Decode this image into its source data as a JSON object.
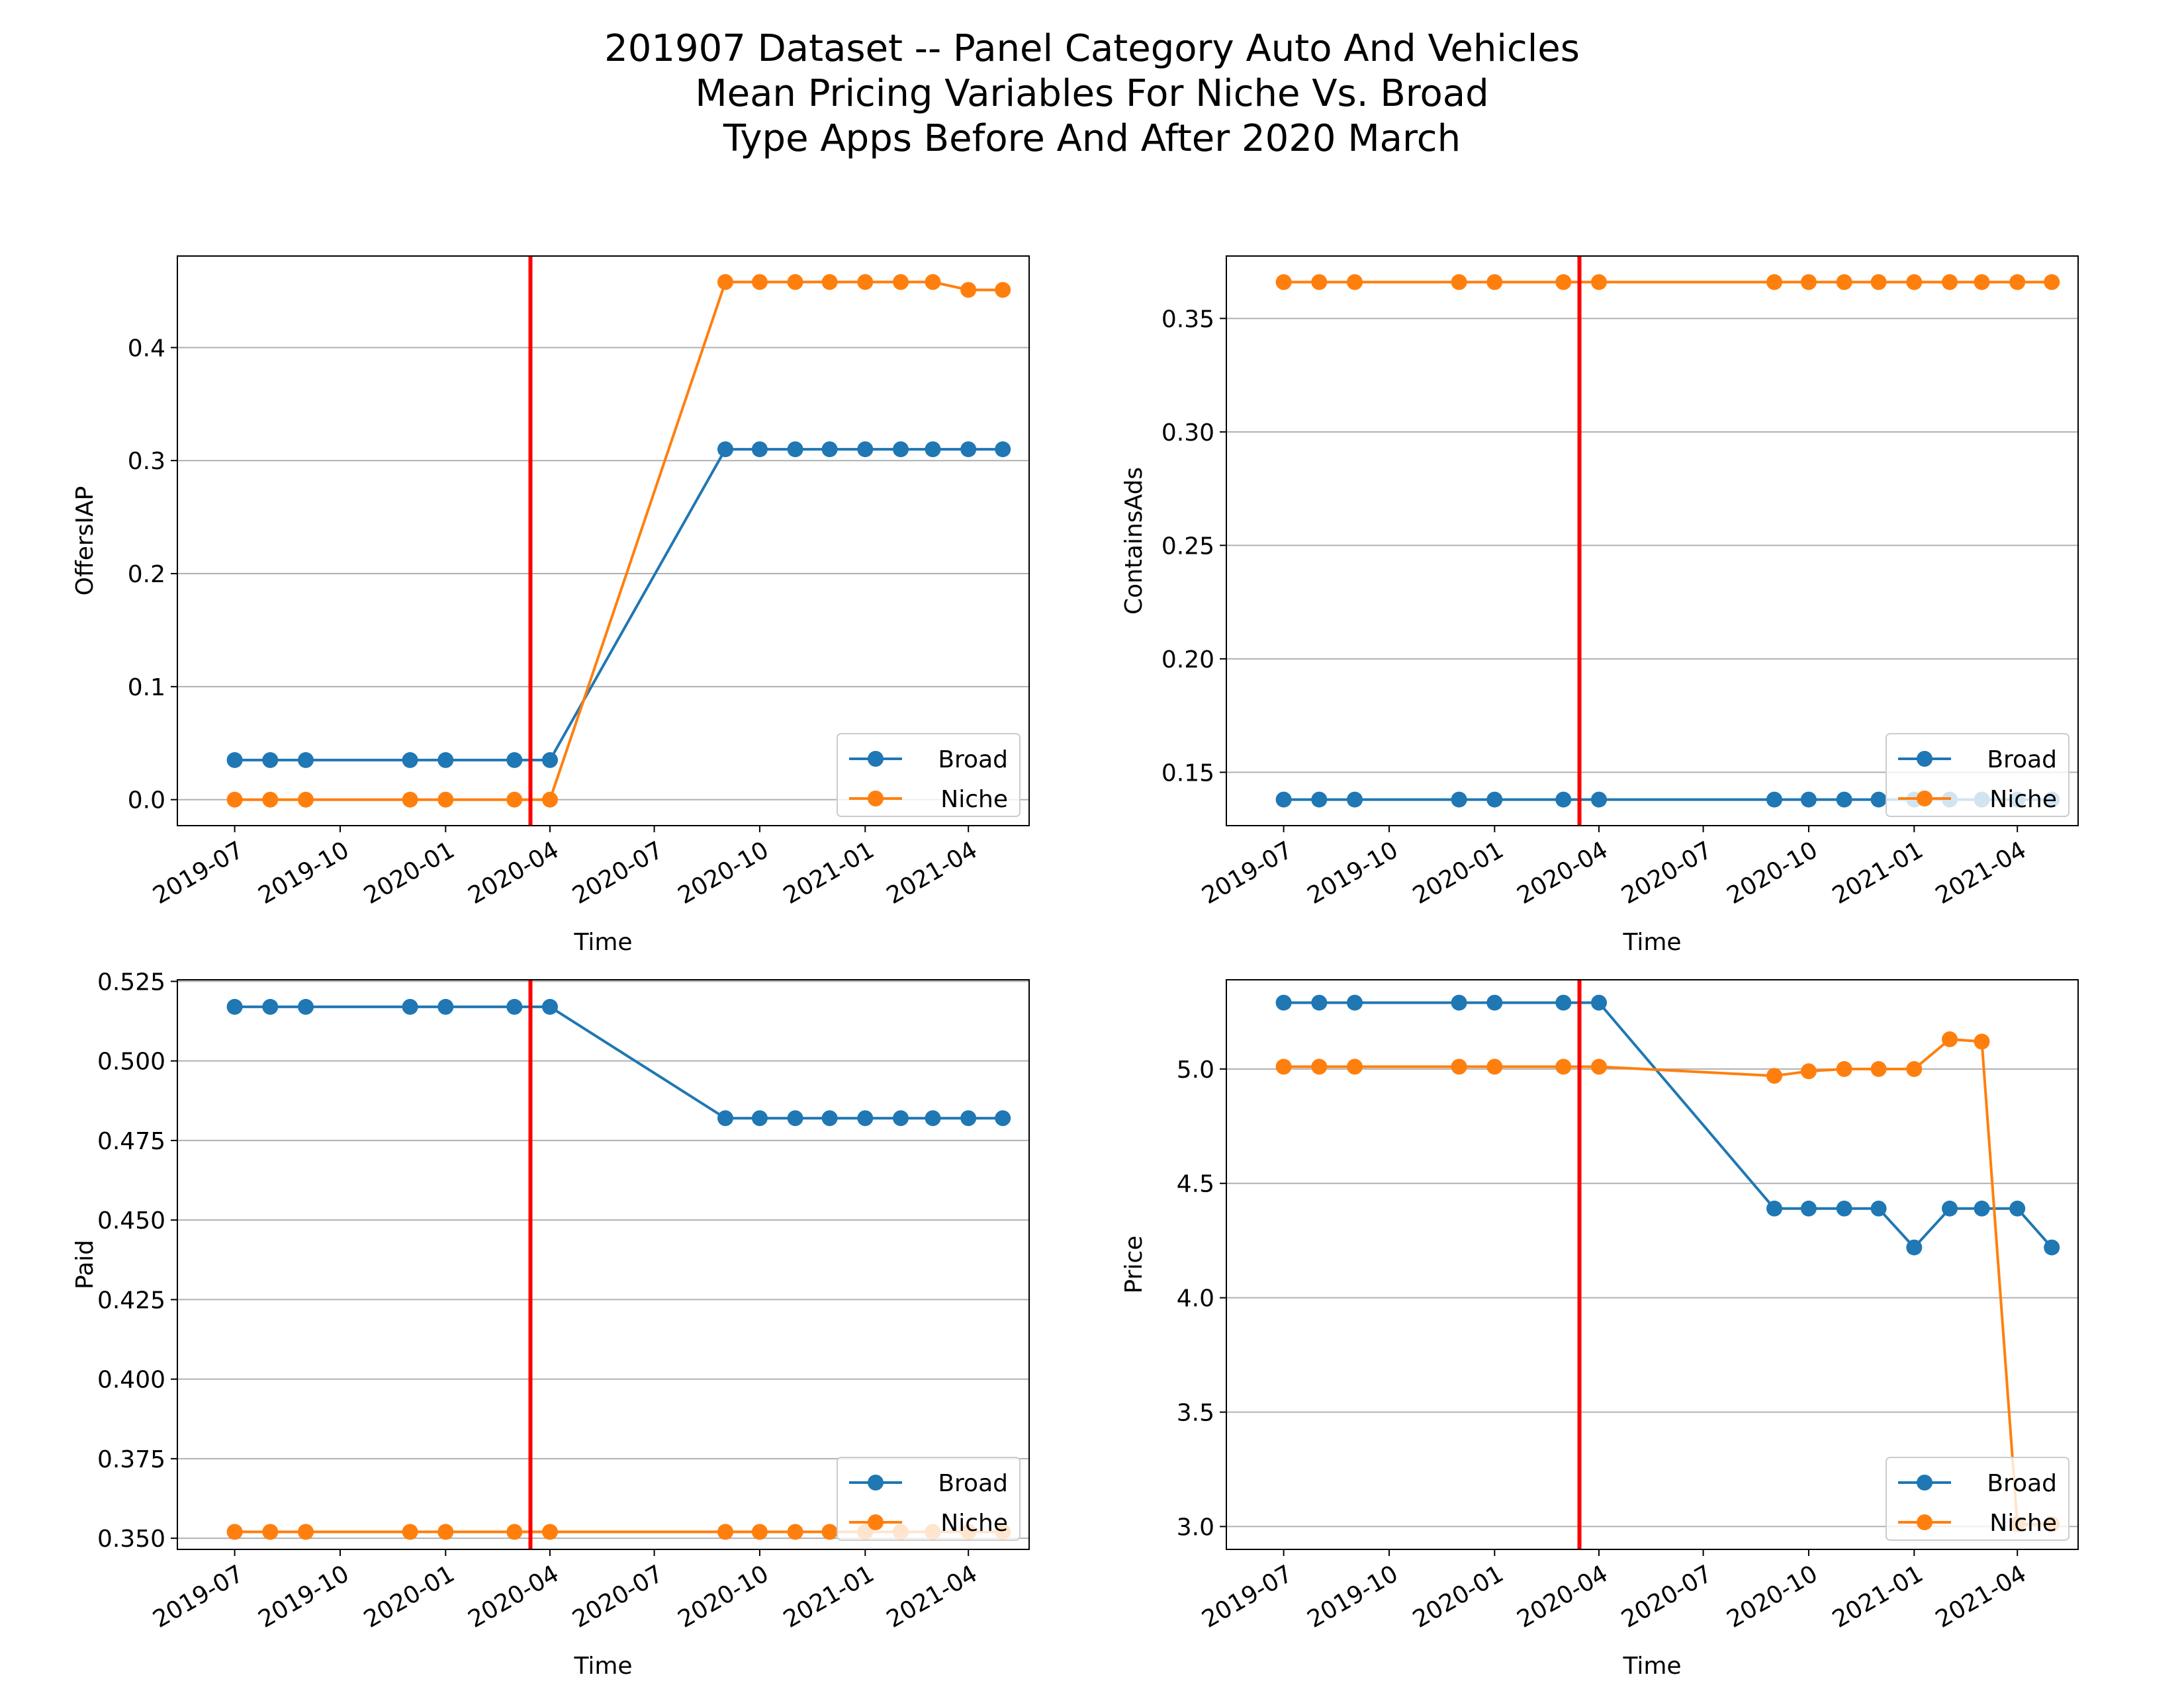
{
  "figure": {
    "title_lines": [
      "201907 Dataset -- Panel Category Auto And Vehicles",
      "Mean Pricing Variables For Niche Vs. Broad",
      "Type Apps Before And After 2020 March"
    ]
  },
  "colors": {
    "broad": "#1f77b4",
    "niche": "#ff7f0e",
    "event_line": "#ff0000",
    "grid": "#b0b0b0",
    "axis": "#000000"
  },
  "chart_data": [
    {
      "type": "line",
      "xlabel": "Time",
      "ylabel": "OffersIAP",
      "x_range": [
        "2019-05-12",
        "2021-05-24"
      ],
      "x_ticks": [
        "2019-07",
        "2019-10",
        "2020-01",
        "2020-04",
        "2020-07",
        "2020-10",
        "2021-01",
        "2021-04"
      ],
      "ylim": [
        -0.023,
        0.481
      ],
      "y_ticks": [
        "0.0",
        "0.1",
        "0.2",
        "0.3",
        "0.4"
      ],
      "grid": "horizontal",
      "legend_position": "lower-right",
      "event_date": "2020-03-15",
      "series": [
        {
          "name": "Broad",
          "color": "broad",
          "points": [
            [
              "2019-07-01",
              0.035
            ],
            [
              "2019-08-01",
              0.035
            ],
            [
              "2019-09-01",
              0.035
            ],
            [
              "2019-12-01",
              0.035
            ],
            [
              "2020-01-01",
              0.035
            ],
            [
              "2020-03-01",
              0.035
            ],
            [
              "2020-04-01",
              0.035
            ],
            [
              "2020-09-01",
              0.31
            ],
            [
              "2020-10-01",
              0.31
            ],
            [
              "2020-11-01",
              0.31
            ],
            [
              "2020-12-01",
              0.31
            ],
            [
              "2021-01-01",
              0.31
            ],
            [
              "2021-02-01",
              0.31
            ],
            [
              "2021-03-01",
              0.31
            ],
            [
              "2021-04-01",
              0.31
            ],
            [
              "2021-05-01",
              0.31
            ]
          ]
        },
        {
          "name": "Niche",
          "color": "niche",
          "points": [
            [
              "2019-07-01",
              0.0
            ],
            [
              "2019-08-01",
              0.0
            ],
            [
              "2019-09-01",
              0.0
            ],
            [
              "2019-12-01",
              0.0
            ],
            [
              "2020-01-01",
              0.0
            ],
            [
              "2020-03-01",
              0.0
            ],
            [
              "2020-04-01",
              0.0
            ],
            [
              "2020-09-01",
              0.458
            ],
            [
              "2020-10-01",
              0.458
            ],
            [
              "2020-11-01",
              0.458
            ],
            [
              "2020-12-01",
              0.458
            ],
            [
              "2021-01-01",
              0.458
            ],
            [
              "2021-02-01",
              0.458
            ],
            [
              "2021-03-01",
              0.458
            ],
            [
              "2021-04-01",
              0.451
            ],
            [
              "2021-05-01",
              0.451
            ]
          ]
        }
      ]
    },
    {
      "type": "line",
      "xlabel": "Time",
      "ylabel": "ContainsAds",
      "x_range": [
        "2019-05-12",
        "2021-05-24"
      ],
      "x_ticks": [
        "2019-07",
        "2019-10",
        "2020-01",
        "2020-04",
        "2020-07",
        "2020-10",
        "2021-01",
        "2021-04"
      ],
      "ylim": [
        0.1265,
        0.3775
      ],
      "y_ticks": [
        "0.15",
        "0.20",
        "0.25",
        "0.30",
        "0.35"
      ],
      "grid": "horizontal",
      "legend_position": "lower-right",
      "event_date": "2020-03-15",
      "series": [
        {
          "name": "Broad",
          "color": "broad",
          "points": [
            [
              "2019-07-01",
              0.138
            ],
            [
              "2019-08-01",
              0.138
            ],
            [
              "2019-09-01",
              0.138
            ],
            [
              "2019-12-01",
              0.138
            ],
            [
              "2020-01-01",
              0.138
            ],
            [
              "2020-03-01",
              0.138
            ],
            [
              "2020-04-01",
              0.138
            ],
            [
              "2020-09-01",
              0.138
            ],
            [
              "2020-10-01",
              0.138
            ],
            [
              "2020-11-01",
              0.138
            ],
            [
              "2020-12-01",
              0.138
            ],
            [
              "2021-01-01",
              0.138
            ],
            [
              "2021-02-01",
              0.138
            ],
            [
              "2021-03-01",
              0.138
            ],
            [
              "2021-04-01",
              0.138
            ],
            [
              "2021-05-01",
              0.138
            ]
          ]
        },
        {
          "name": "Niche",
          "color": "niche",
          "points": [
            [
              "2019-07-01",
              0.366
            ],
            [
              "2019-08-01",
              0.366
            ],
            [
              "2019-09-01",
              0.366
            ],
            [
              "2019-12-01",
              0.366
            ],
            [
              "2020-01-01",
              0.366
            ],
            [
              "2020-03-01",
              0.366
            ],
            [
              "2020-04-01",
              0.366
            ],
            [
              "2020-09-01",
              0.366
            ],
            [
              "2020-10-01",
              0.366
            ],
            [
              "2020-11-01",
              0.366
            ],
            [
              "2020-12-01",
              0.366
            ],
            [
              "2021-01-01",
              0.366
            ],
            [
              "2021-02-01",
              0.366
            ],
            [
              "2021-03-01",
              0.366
            ],
            [
              "2021-04-01",
              0.366
            ],
            [
              "2021-05-01",
              0.366
            ]
          ]
        }
      ]
    },
    {
      "type": "line",
      "xlabel": "Time",
      "ylabel": "Paid",
      "x_range": [
        "2019-05-12",
        "2021-05-24"
      ],
      "x_ticks": [
        "2019-07",
        "2019-10",
        "2020-01",
        "2020-04",
        "2020-07",
        "2020-10",
        "2021-01",
        "2021-04"
      ],
      "ylim": [
        0.3465,
        0.5255
      ],
      "y_ticks": [
        "0.350",
        "0.375",
        "0.400",
        "0.425",
        "0.450",
        "0.475",
        "0.500",
        "0.525"
      ],
      "grid": "horizontal",
      "legend_position": "lower-right",
      "event_date": "2020-03-15",
      "series": [
        {
          "name": "Broad",
          "color": "broad",
          "points": [
            [
              "2019-07-01",
              0.517
            ],
            [
              "2019-08-01",
              0.517
            ],
            [
              "2019-09-01",
              0.517
            ],
            [
              "2019-12-01",
              0.517
            ],
            [
              "2020-01-01",
              0.517
            ],
            [
              "2020-03-01",
              0.517
            ],
            [
              "2020-04-01",
              0.517
            ],
            [
              "2020-09-01",
              0.482
            ],
            [
              "2020-10-01",
              0.482
            ],
            [
              "2020-11-01",
              0.482
            ],
            [
              "2020-12-01",
              0.482
            ],
            [
              "2021-01-01",
              0.482
            ],
            [
              "2021-02-01",
              0.482
            ],
            [
              "2021-03-01",
              0.482
            ],
            [
              "2021-04-01",
              0.482
            ],
            [
              "2021-05-01",
              0.482
            ]
          ]
        },
        {
          "name": "Niche",
          "color": "niche",
          "points": [
            [
              "2019-07-01",
              0.352
            ],
            [
              "2019-08-01",
              0.352
            ],
            [
              "2019-09-01",
              0.352
            ],
            [
              "2019-12-01",
              0.352
            ],
            [
              "2020-01-01",
              0.352
            ],
            [
              "2020-03-01",
              0.352
            ],
            [
              "2020-04-01",
              0.352
            ],
            [
              "2020-09-01",
              0.352
            ],
            [
              "2020-10-01",
              0.352
            ],
            [
              "2020-11-01",
              0.352
            ],
            [
              "2020-12-01",
              0.352
            ],
            [
              "2021-01-01",
              0.352
            ],
            [
              "2021-02-01",
              0.352
            ],
            [
              "2021-03-01",
              0.352
            ],
            [
              "2021-04-01",
              0.352
            ],
            [
              "2021-05-01",
              0.352
            ]
          ]
        }
      ]
    },
    {
      "type": "line",
      "xlabel": "Time",
      "ylabel": "Price",
      "x_range": [
        "2019-05-12",
        "2021-05-24"
      ],
      "x_ticks": [
        "2019-07",
        "2019-10",
        "2020-01",
        "2020-04",
        "2020-07",
        "2020-10",
        "2021-01",
        "2021-04"
      ],
      "ylim": [
        2.9,
        5.39
      ],
      "y_ticks": [
        "3.0",
        "3.5",
        "4.0",
        "4.5",
        "5.0"
      ],
      "grid": "horizontal",
      "legend_position": "lower-right",
      "event_date": "2020-03-15",
      "series": [
        {
          "name": "Broad",
          "color": "broad",
          "points": [
            [
              "2019-07-01",
              5.29
            ],
            [
              "2019-08-01",
              5.29
            ],
            [
              "2019-09-01",
              5.29
            ],
            [
              "2019-12-01",
              5.29
            ],
            [
              "2020-01-01",
              5.29
            ],
            [
              "2020-03-01",
              5.29
            ],
            [
              "2020-04-01",
              5.29
            ],
            [
              "2020-09-01",
              4.39
            ],
            [
              "2020-10-01",
              4.39
            ],
            [
              "2020-11-01",
              4.39
            ],
            [
              "2020-12-01",
              4.39
            ],
            [
              "2021-01-01",
              4.22
            ],
            [
              "2021-02-01",
              4.39
            ],
            [
              "2021-03-01",
              4.39
            ],
            [
              "2021-04-01",
              4.39
            ],
            [
              "2021-05-01",
              4.22
            ]
          ]
        },
        {
          "name": "Niche",
          "color": "niche",
          "points": [
            [
              "2019-07-01",
              5.01
            ],
            [
              "2019-08-01",
              5.01
            ],
            [
              "2019-09-01",
              5.01
            ],
            [
              "2019-12-01",
              5.01
            ],
            [
              "2020-01-01",
              5.01
            ],
            [
              "2020-03-01",
              5.01
            ],
            [
              "2020-04-01",
              5.01
            ],
            [
              "2020-09-01",
              4.97
            ],
            [
              "2020-10-01",
              4.99
            ],
            [
              "2020-11-01",
              5.0
            ],
            [
              "2020-12-01",
              5.0
            ],
            [
              "2021-01-01",
              5.0
            ],
            [
              "2021-02-01",
              5.13
            ],
            [
              "2021-03-01",
              5.12
            ],
            [
              "2021-04-01",
              3.01
            ],
            [
              "2021-05-01",
              3.01
            ]
          ]
        }
      ]
    }
  ]
}
